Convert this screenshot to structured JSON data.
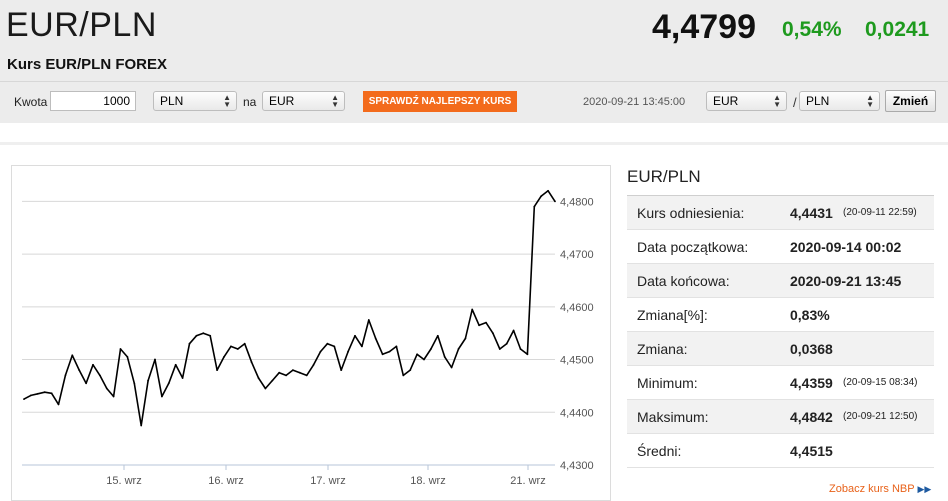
{
  "header": {
    "title": "EUR/PLN",
    "subtitle": "Kurs EUR/PLN FOREX",
    "price": "4,4799",
    "change_pct": "0,54%",
    "change_abs": "0,0241",
    "change_color": "#1e9a1e"
  },
  "converter": {
    "amount_label": "Kwota",
    "amount_value": "1000",
    "from_currency": "PLN",
    "to_label": "na",
    "to_currency": "EUR",
    "best_rate_button": "SPRAWDŹ NAJLEPSZY KURS",
    "best_rate_color": "#f36b1c",
    "timestamp": "2020-09-21 13:45:00",
    "pair_base": "EUR",
    "pair_separator": "/",
    "pair_quote": "PLN",
    "change_button": "Zmień"
  },
  "chart_data": {
    "type": "line",
    "x_ticks": [
      "15. wrz",
      "16. wrz",
      "17. wrz",
      "18. wrz",
      "21. wrz"
    ],
    "y_ticks": [
      "4,4800",
      "4,4700",
      "4,4600",
      "4,4500",
      "4,4400",
      "4,4300"
    ],
    "ylim": [
      4.43,
      4.485
    ],
    "line_color": "#000000",
    "series": [
      {
        "values": [
          4.4425,
          4.4432,
          4.4435,
          4.4438,
          4.4436,
          4.4415,
          4.447,
          4.4508,
          4.448,
          4.4455,
          4.449,
          4.447,
          4.4445,
          4.443,
          4.452,
          4.4505,
          4.4455,
          4.4375,
          4.446,
          4.45,
          4.443,
          4.4455,
          4.449,
          4.4465,
          4.453,
          4.4545,
          4.455,
          4.4545,
          4.448,
          4.4505,
          4.4525,
          4.452,
          4.453,
          4.4495,
          4.4465,
          4.4445,
          4.446,
          4.4475,
          4.447,
          4.448,
          4.4475,
          4.447,
          4.449,
          4.4515,
          4.453,
          4.4525,
          4.448,
          4.4515,
          4.4545,
          4.4525,
          4.4575,
          4.454,
          4.451,
          4.4515,
          4.4525,
          4.447,
          4.448,
          4.451,
          4.45,
          4.452,
          4.4545,
          4.4505,
          4.4485,
          4.452,
          4.454,
          4.4595,
          4.4565,
          4.457,
          4.455,
          4.452,
          4.453,
          4.4555,
          4.452,
          4.451,
          4.479,
          4.481,
          4.482,
          4.48
        ]
      }
    ]
  },
  "info": {
    "title": "EUR/PLN",
    "rows": [
      {
        "label": "Kurs odniesienia:",
        "value": "4,4431",
        "time": "(20-09-11 22:59)"
      },
      {
        "label": "Data początkowa:",
        "value": "2020-09-14 00:02",
        "time": ""
      },
      {
        "label": "Data końcowa:",
        "value": "2020-09-21 13:45",
        "time": ""
      },
      {
        "label": "Zmiana[%]:",
        "value": "0,83%",
        "time": ""
      },
      {
        "label": "Zmiana:",
        "value": "0,0368",
        "time": ""
      },
      {
        "label": "Minimum:",
        "value": "4,4359",
        "time": "(20-09-15 08:34)"
      },
      {
        "label": "Maksimum:",
        "value": "4,4842",
        "time": "(20-09-21 12:50)"
      },
      {
        "label": "Średni:",
        "value": "4,4515",
        "time": ""
      }
    ],
    "nbp_link": "Zobacz kurs NBP",
    "nbp_link_color": "#e8621a"
  }
}
